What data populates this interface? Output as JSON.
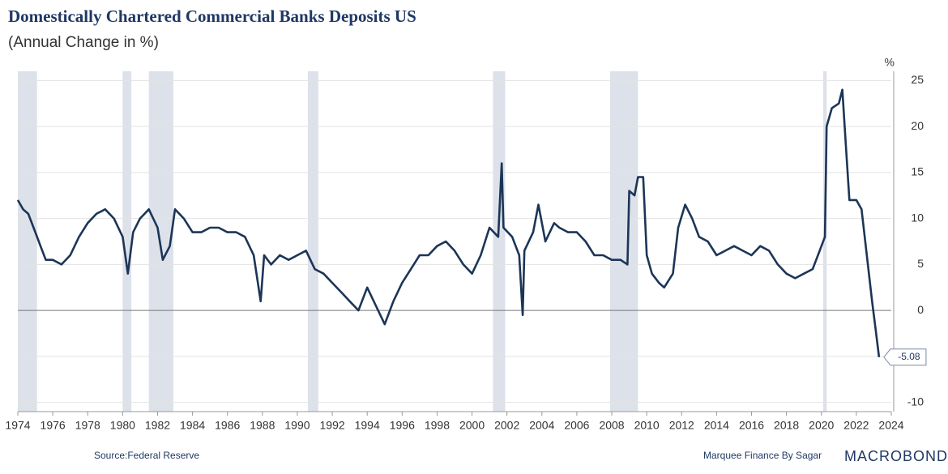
{
  "chart_data": {
    "type": "line",
    "title": "Domestically Chartered Commercial Banks Deposits US",
    "subtitle": "(Annual Change in %)",
    "y_unit": "%",
    "source": "Source:Federal Reserve",
    "credit": "Marquee Finance By Sagar",
    "brand": "MACROBOND",
    "color": "#1c3557",
    "shade_color": "#dde1ea",
    "grid": true,
    "x": [
      1974.0,
      1974.3,
      1974.6,
      1975.0,
      1975.3,
      1975.6,
      1976.0,
      1976.5,
      1977.0,
      1977.5,
      1978.0,
      1978.5,
      1979.0,
      1979.5,
      1980.0,
      1980.3,
      1980.6,
      1981.0,
      1981.5,
      1982.0,
      1982.3,
      1982.7,
      1983.0,
      1983.5,
      1984.0,
      1984.5,
      1985.0,
      1985.5,
      1986.0,
      1986.5,
      1987.0,
      1987.5,
      1987.9,
      1988.1,
      1988.5,
      1989.0,
      1989.5,
      1990.0,
      1990.5,
      1991.0,
      1991.5,
      1992.0,
      1992.5,
      1993.0,
      1993.5,
      1994.0,
      1994.5,
      1995.0,
      1995.5,
      1996.0,
      1996.5,
      1997.0,
      1997.5,
      1998.0,
      1998.5,
      1999.0,
      1999.5,
      2000.0,
      2000.5,
      2001.0,
      2001.5,
      2001.7,
      2001.8,
      2002.3,
      2002.7,
      2002.9,
      2003.0,
      2003.5,
      2003.8,
      2004.2,
      2004.7,
      2005.0,
      2005.5,
      2006.0,
      2006.5,
      2007.0,
      2007.5,
      2008.0,
      2008.5,
      2008.9,
      2009.0,
      2009.3,
      2009.5,
      2009.8,
      2010.0,
      2010.3,
      2010.7,
      2011.0,
      2011.5,
      2011.8,
      2012.2,
      2012.6,
      2013.0,
      2013.5,
      2014.0,
      2014.5,
      2015.0,
      2015.5,
      2016.0,
      2016.5,
      2017.0,
      2017.5,
      2018.0,
      2018.5,
      2019.0,
      2019.5,
      2020.0,
      2020.2,
      2020.3,
      2020.6,
      2021.0,
      2021.2,
      2021.4,
      2021.6,
      2022.0,
      2022.3,
      2022.6,
      2022.9,
      2023.1,
      2023.3
    ],
    "values": [
      12,
      11,
      10.5,
      8.5,
      7,
      5.5,
      5.5,
      5,
      6,
      8,
      9.5,
      10.5,
      11,
      10,
      8,
      4,
      8.5,
      10,
      11,
      9,
      5.5,
      7,
      11,
      10,
      8.5,
      8.5,
      9,
      9,
      8.5,
      8.5,
      8,
      6,
      1,
      6,
      5,
      6,
      5.5,
      6,
      6.5,
      4.5,
      4,
      3,
      2,
      1,
      0,
      2.5,
      0.5,
      -1.5,
      1,
      3,
      4.5,
      6,
      6,
      7,
      7.5,
      6.5,
      5,
      4,
      6,
      9,
      8,
      16,
      9,
      8,
      6,
      -0.5,
      6.5,
      8.5,
      11.5,
      7.5,
      9.5,
      9,
      8.5,
      8.5,
      7.5,
      6,
      6,
      5.5,
      5.5,
      5,
      13,
      12.5,
      14.5,
      14.5,
      6,
      4,
      3,
      2.5,
      4,
      9,
      11.5,
      10,
      8,
      7.5,
      6,
      6.5,
      7,
      6.5,
      6,
      7,
      6.5,
      5,
      4,
      3.5,
      4,
      4.5,
      7,
      8,
      20,
      22,
      22.5,
      24,
      18,
      12,
      12,
      11,
      6,
      1,
      -2,
      -5.08
    ],
    "shaded_periods": [
      [
        1974.0,
        1975.1
      ],
      [
        1980.0,
        1980.5
      ],
      [
        1981.5,
        1982.9
      ],
      [
        1990.6,
        1991.2
      ],
      [
        2001.2,
        2001.9
      ],
      [
        2007.9,
        2009.5
      ],
      [
        2020.1,
        2020.3
      ]
    ],
    "xlim": [
      1974,
      2024
    ],
    "xticks": [
      1974,
      1976,
      1978,
      1980,
      1982,
      1984,
      1986,
      1988,
      1990,
      1992,
      1994,
      1996,
      1998,
      2000,
      2002,
      2004,
      2006,
      2008,
      2010,
      2012,
      2014,
      2016,
      2018,
      2020,
      2022,
      2024
    ],
    "ylim": [
      -11,
      26
    ],
    "yticks": [
      -10,
      -5,
      0,
      5,
      10,
      15,
      20,
      25
    ]
  }
}
